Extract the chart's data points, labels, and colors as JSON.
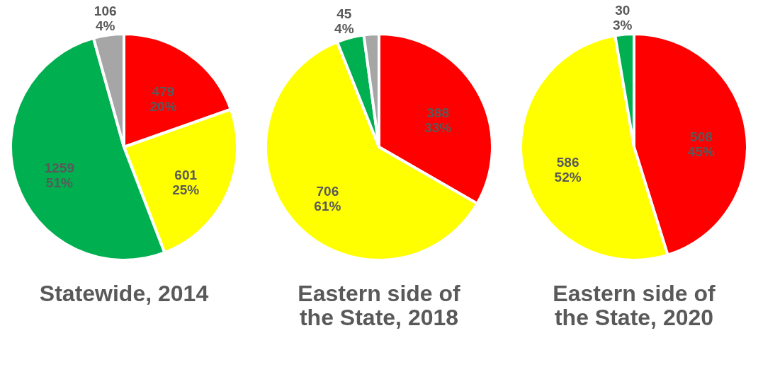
{
  "chart_data": [
    {
      "type": "pie",
      "title": "Statewide, 2014",
      "categories": [
        null,
        null,
        null,
        null
      ],
      "values": [
        479,
        601,
        1259,
        106
      ],
      "colors": [
        "#ff0000",
        "#ffff00",
        "#00b050",
        "#a6a6a6"
      ],
      "value_labels": [
        "479\n20%",
        "601\n25%",
        "1259\n51%",
        "106\n4%"
      ]
    },
    {
      "type": "pie",
      "title": "Eastern side of the State, 2018",
      "categories": [
        null,
        null,
        null,
        null
      ],
      "values": [
        388,
        706,
        45,
        25
      ],
      "colors": [
        "#ff0000",
        "#ffff00",
        "#00b050",
        "#a6a6a6"
      ],
      "value_labels": [
        "388\n33%",
        "706\n61%",
        "45\n4%",
        null
      ]
    },
    {
      "type": "pie",
      "title": "Eastern side of the State, 2020",
      "categories": [
        null,
        null,
        null
      ],
      "values": [
        508,
        586,
        30
      ],
      "colors": [
        "#ff0000",
        "#ffff00",
        "#00b050"
      ],
      "value_labels": [
        "508\n45%",
        "586\n52%",
        "30\n3%"
      ]
    }
  ]
}
